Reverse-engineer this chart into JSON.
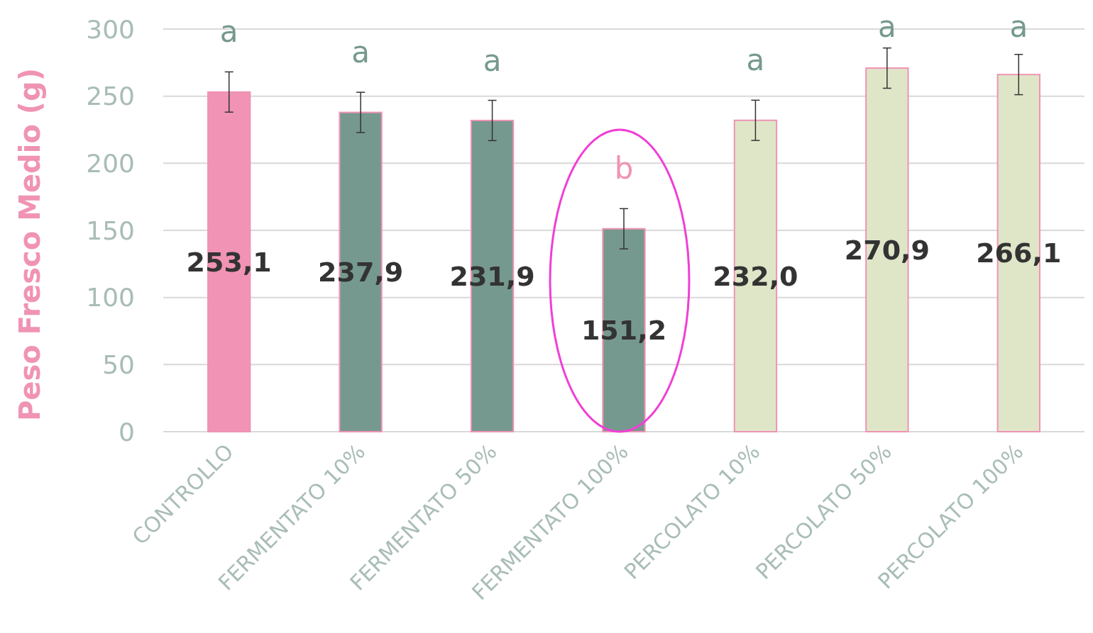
{
  "chart_data": {
    "type": "bar",
    "ylabel": "Peso Fresco Medio (g)",
    "categories": [
      "CONTROLLO",
      "FERMENTATO 10%",
      "FERMENTATO 50%",
      "FERMENTATO 100%",
      "PERCOLATO 10%",
      "PERCOLATO 50%",
      "PERCOLATO 100%"
    ],
    "values": [
      253.1,
      237.9,
      231.9,
      151.2,
      232.0,
      270.9,
      266.1
    ],
    "colors": [
      "#f093b4",
      "#76998f",
      "#76998f",
      "#76998f",
      "#dfe6c8",
      "#dfe6c8",
      "#dfe6c8"
    ],
    "errors": [
      15,
      15,
      15,
      15,
      15,
      15,
      15
    ],
    "value_labels": [
      "253,1",
      "237,9",
      "231,9",
      "151,2",
      "232,0",
      "270,9",
      "266,1"
    ],
    "annotations": [
      "a",
      "a",
      "a",
      "b",
      "a",
      "a",
      "a"
    ],
    "ylim": [
      0,
      300
    ],
    "yticks": [
      0,
      50,
      100,
      150,
      200,
      250,
      300
    ],
    "grid": "y"
  }
}
